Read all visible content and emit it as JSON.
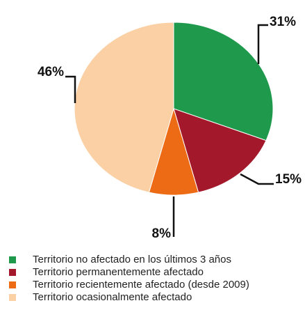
{
  "chart_data": {
    "type": "pie",
    "categories": [
      "Territorio no afectado en los últimos 3 años",
      "Territorio permanentemente afectado",
      "Territorio recientemente afectado (desde 2009)",
      "Territorio ocasionalmente afectado"
    ],
    "values": [
      31,
      15,
      8,
      46
    ],
    "value_labels": [
      "31%",
      "15%",
      "8%",
      "46%"
    ],
    "colors": [
      "#1f9a4c",
      "#a3192b",
      "#ee6b16",
      "#fbd0a4"
    ]
  }
}
